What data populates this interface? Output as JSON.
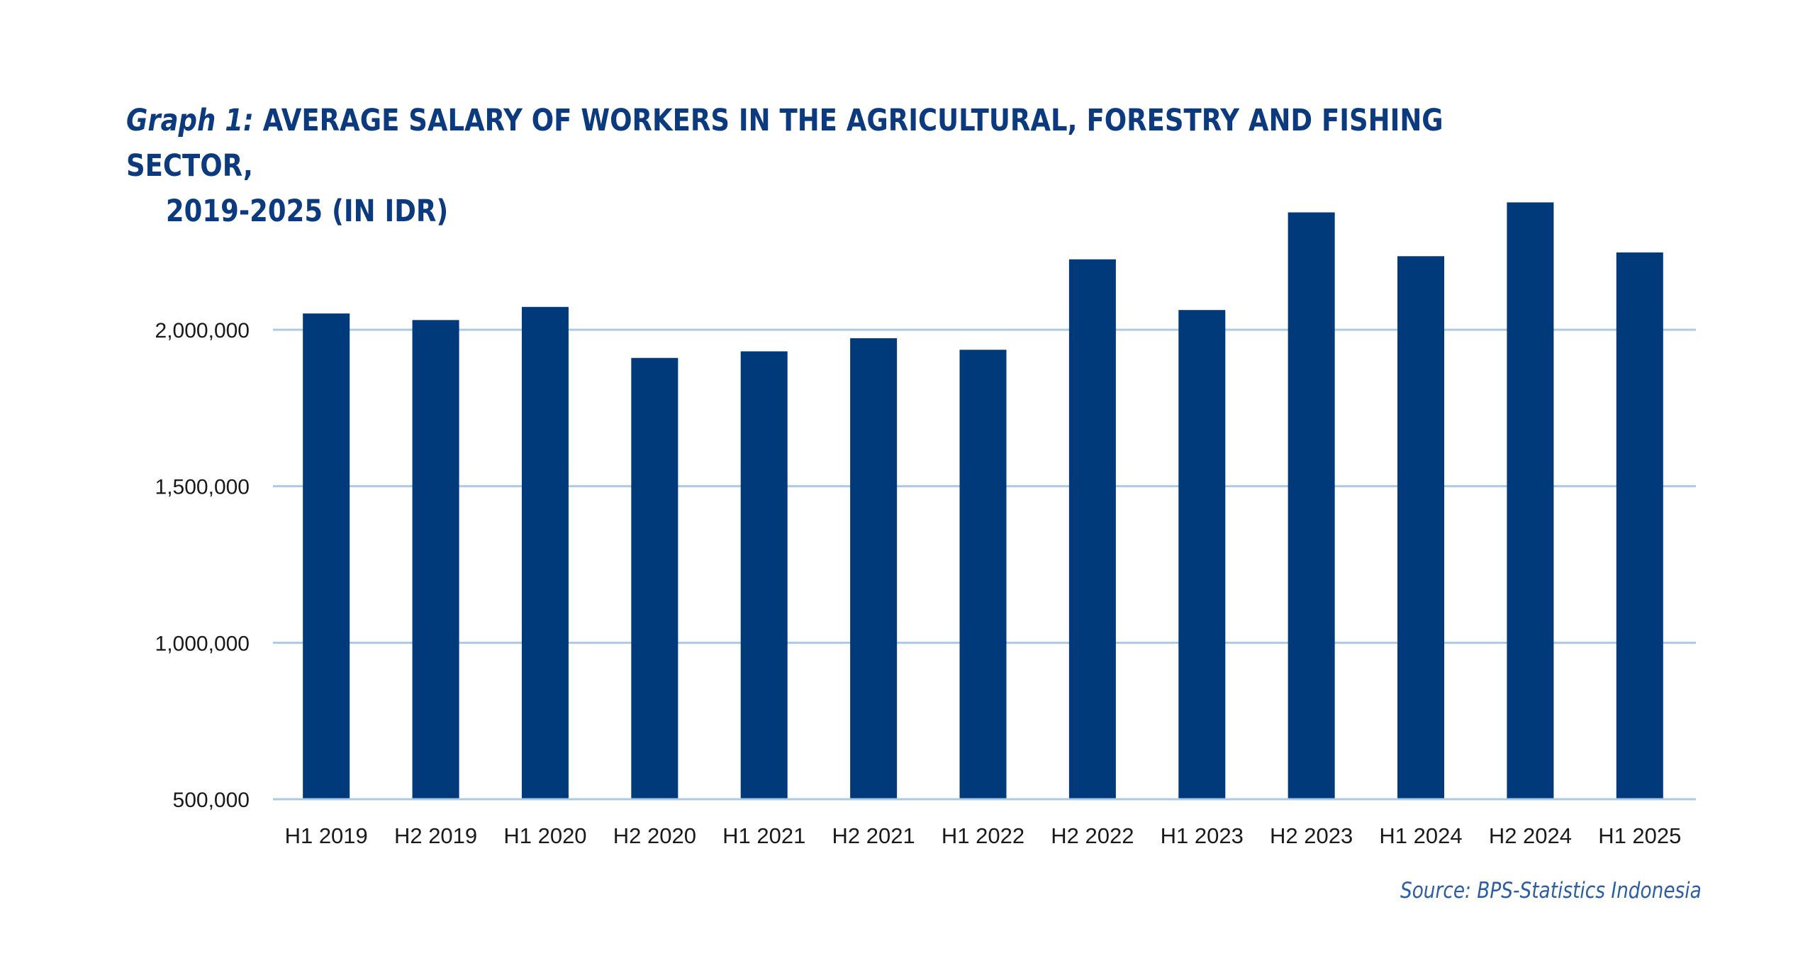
{
  "title": {
    "prefix": "Graph 1:",
    "line1": "AVERAGE SALARY OF WORKERS IN THE AGRICULTURAL, FORESTRY AND FISHING SECTOR,",
    "line2": "2019-2025 (IN IDR)"
  },
  "source": "Source: BPS-Statistics Indonesia",
  "colors": {
    "bar": "#003a7a",
    "grid": "#a9cbe9",
    "axis_text": "#1a1a1a",
    "title": "#0b3a7e",
    "source": "#2b5ea3"
  },
  "chart_data": {
    "type": "bar",
    "categories": [
      "H1 2019",
      "H2 2019",
      "H1 2020",
      "H2 2020",
      "H1 2021",
      "H2 2021",
      "H1 2022",
      "H2 2022",
      "H1 2023",
      "H2 2023",
      "H1 2024",
      "H2 2024",
      "H1 2025"
    ],
    "values": [
      2052000,
      2031000,
      2073000,
      1910000,
      1931000,
      1973000,
      1936000,
      2225000,
      2063000,
      2375000,
      2235000,
      2407000,
      2247000
    ],
    "yticks": [
      500000,
      1000000,
      1500000,
      2000000
    ],
    "ytick_labels": [
      "500,000",
      "1,000,000",
      "1,500,000",
      "2,000,000"
    ],
    "ylim": [
      500000,
      2450000
    ],
    "xlabel": "",
    "ylabel": "",
    "grid": true,
    "legend": "none"
  }
}
